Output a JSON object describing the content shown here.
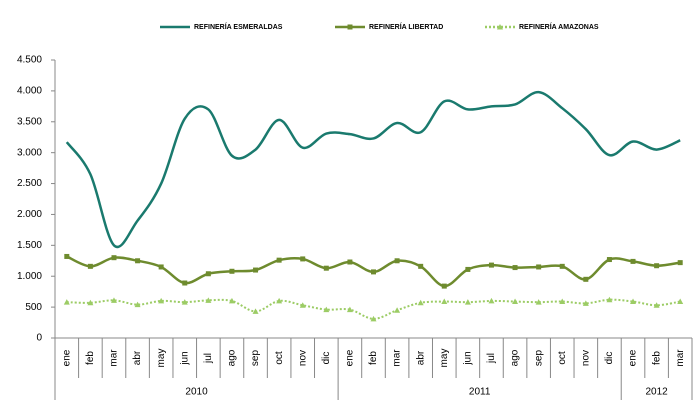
{
  "chart_data": {
    "type": "line",
    "categories": [
      "ene",
      "feb",
      "mar",
      "abr",
      "may",
      "jun",
      "jul",
      "ago",
      "sep",
      "oct",
      "nov",
      "dic",
      "ene",
      "feb",
      "mar",
      "abr",
      "may",
      "jun",
      "jul",
      "ago",
      "sep",
      "oct",
      "nov",
      "dic",
      "ene",
      "feb",
      "mar"
    ],
    "groups": [
      {
        "name": "2010",
        "span": 12
      },
      {
        "name": "2011",
        "span": 12
      },
      {
        "name": "2012",
        "span": 3
      }
    ],
    "series": [
      {
        "name": "REFINERÍA ESMERALDAS",
        "color": "#1a7a6e",
        "marker": "none",
        "dash": "solid",
        "values": [
          3170,
          2650,
          1500,
          1900,
          2500,
          3550,
          3700,
          2950,
          3050,
          3530,
          3080,
          3310,
          3300,
          3230,
          3480,
          3330,
          3830,
          3700,
          3750,
          3780,
          3980,
          3720,
          3380,
          2960,
          3180,
          3050,
          3200
        ]
      },
      {
        "name": "REFINERÍA LIBERTAD",
        "color": "#6e8b2e",
        "marker": "square",
        "dash": "solid",
        "values": [
          1320,
          1160,
          1300,
          1250,
          1150,
          890,
          1040,
          1080,
          1100,
          1260,
          1280,
          1130,
          1230,
          1070,
          1250,
          1160,
          840,
          1110,
          1180,
          1140,
          1150,
          1160,
          950,
          1270,
          1240,
          1170,
          1220
        ]
      },
      {
        "name": "REFINERÍA AMAZONAS",
        "color": "#9ccc65",
        "marker": "triangle",
        "dash": "dotted",
        "values": [
          580,
          570,
          610,
          540,
          600,
          580,
          610,
          600,
          430,
          600,
          530,
          460,
          460,
          310,
          450,
          570,
          590,
          580,
          600,
          590,
          580,
          590,
          560,
          620,
          590,
          530,
          590
        ]
      }
    ],
    "ylim": [
      0,
      4500
    ],
    "yticks": [
      0,
      500,
      {
        "value": 1000,
        "label": "1.000"
      },
      {
        "value": 1500,
        "label": "1.500"
      },
      {
        "value": 2000,
        "label": "2.000"
      },
      {
        "value": 2500,
        "label": "2.500"
      },
      {
        "value": 3000,
        "label": "3.000"
      },
      {
        "value": 3500,
        "label": "3.500"
      },
      {
        "value": 4000,
        "label": "4.000"
      },
      {
        "value": 4500,
        "label": "4.500"
      }
    ],
    "legend": "top",
    "smooth": true
  }
}
